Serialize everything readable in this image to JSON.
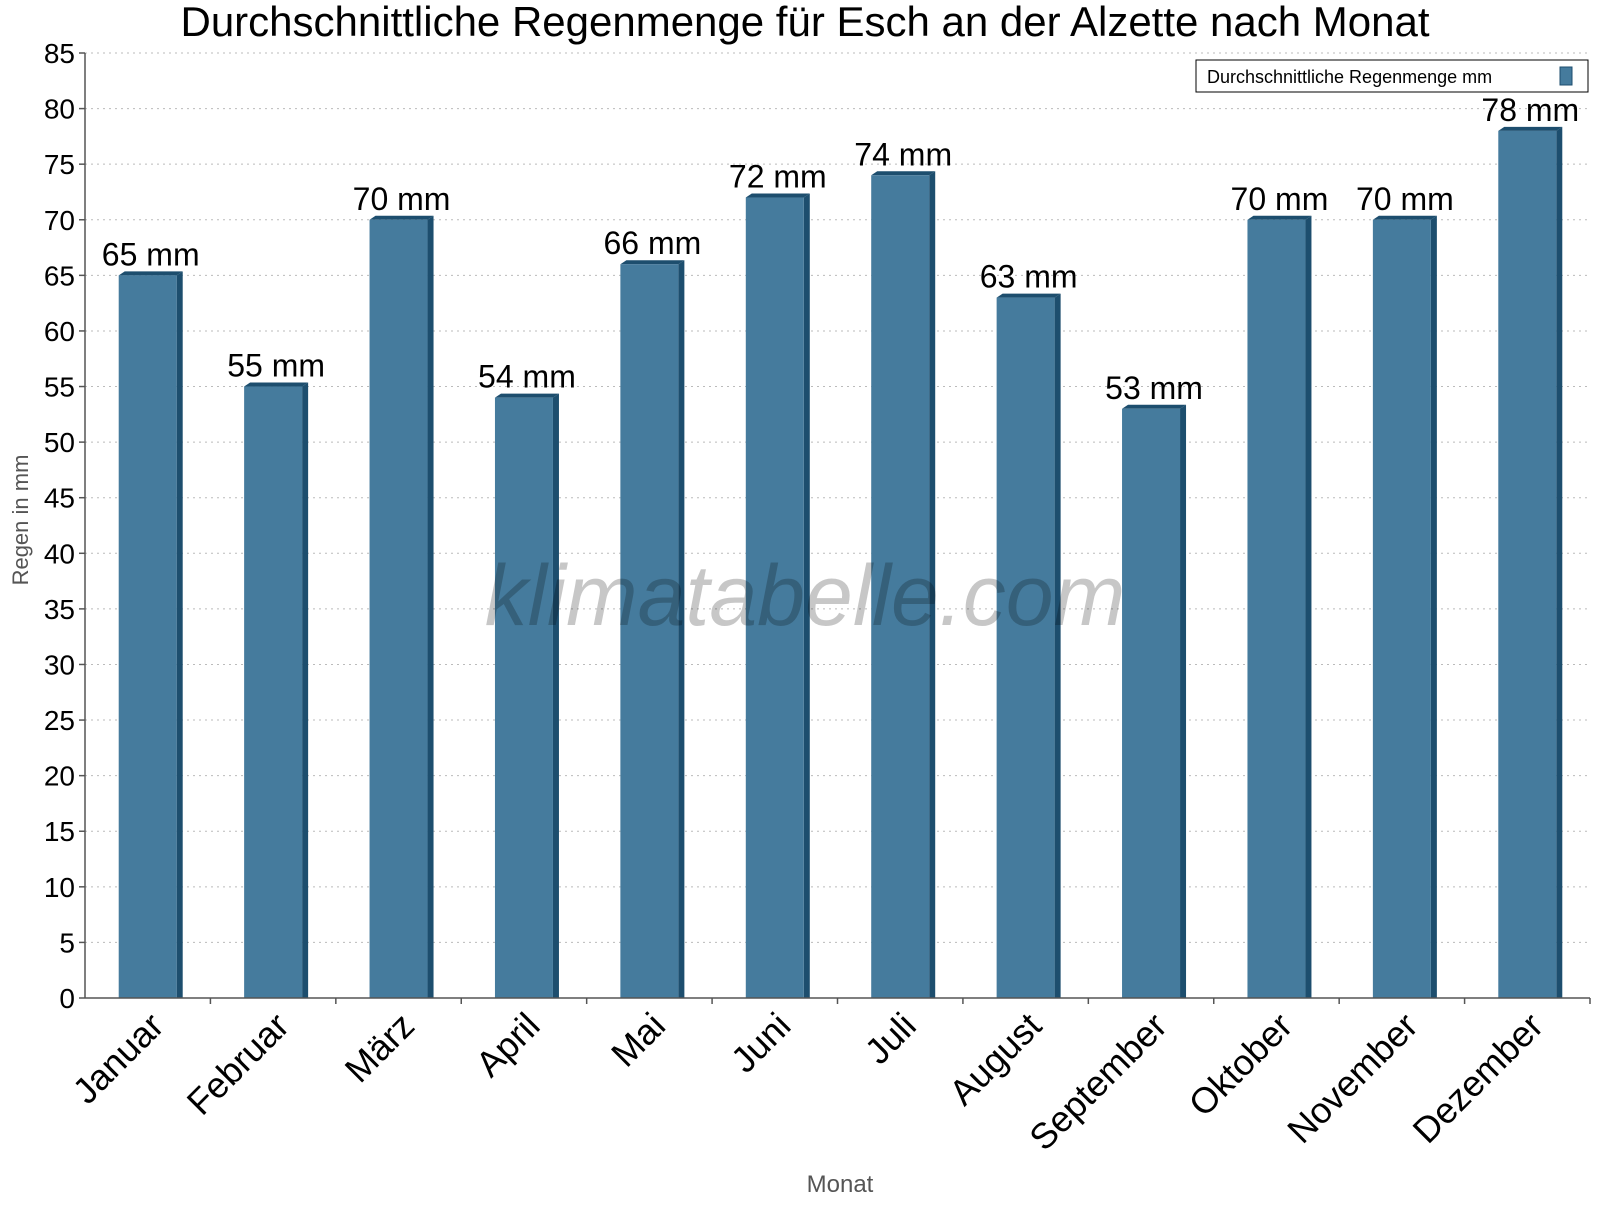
{
  "chart_data": {
    "type": "bar",
    "title": "Durchschnittliche Regenmenge für Esch an der Alzette nach Monat",
    "xlabel": "Monat",
    "ylabel": "Regen in mm",
    "categories": [
      "Januar",
      "Februar",
      "März",
      "April",
      "Mai",
      "Juni",
      "Juli",
      "August",
      "September",
      "Oktober",
      "November",
      "Dezember"
    ],
    "series": [
      {
        "name": "Durchschnittliche Regenmenge mm",
        "values": [
          65,
          55,
          70,
          54,
          66,
          72,
          74,
          63,
          53,
          70,
          70,
          78
        ],
        "color": "#457b9d",
        "side_color": "#1d4e6e"
      }
    ],
    "value_label_suffix": " mm",
    "ylim": [
      0,
      85
    ],
    "ytick_step": 5,
    "grid": true,
    "legend_position": "top-right",
    "watermark": "klimatabelle.com"
  }
}
